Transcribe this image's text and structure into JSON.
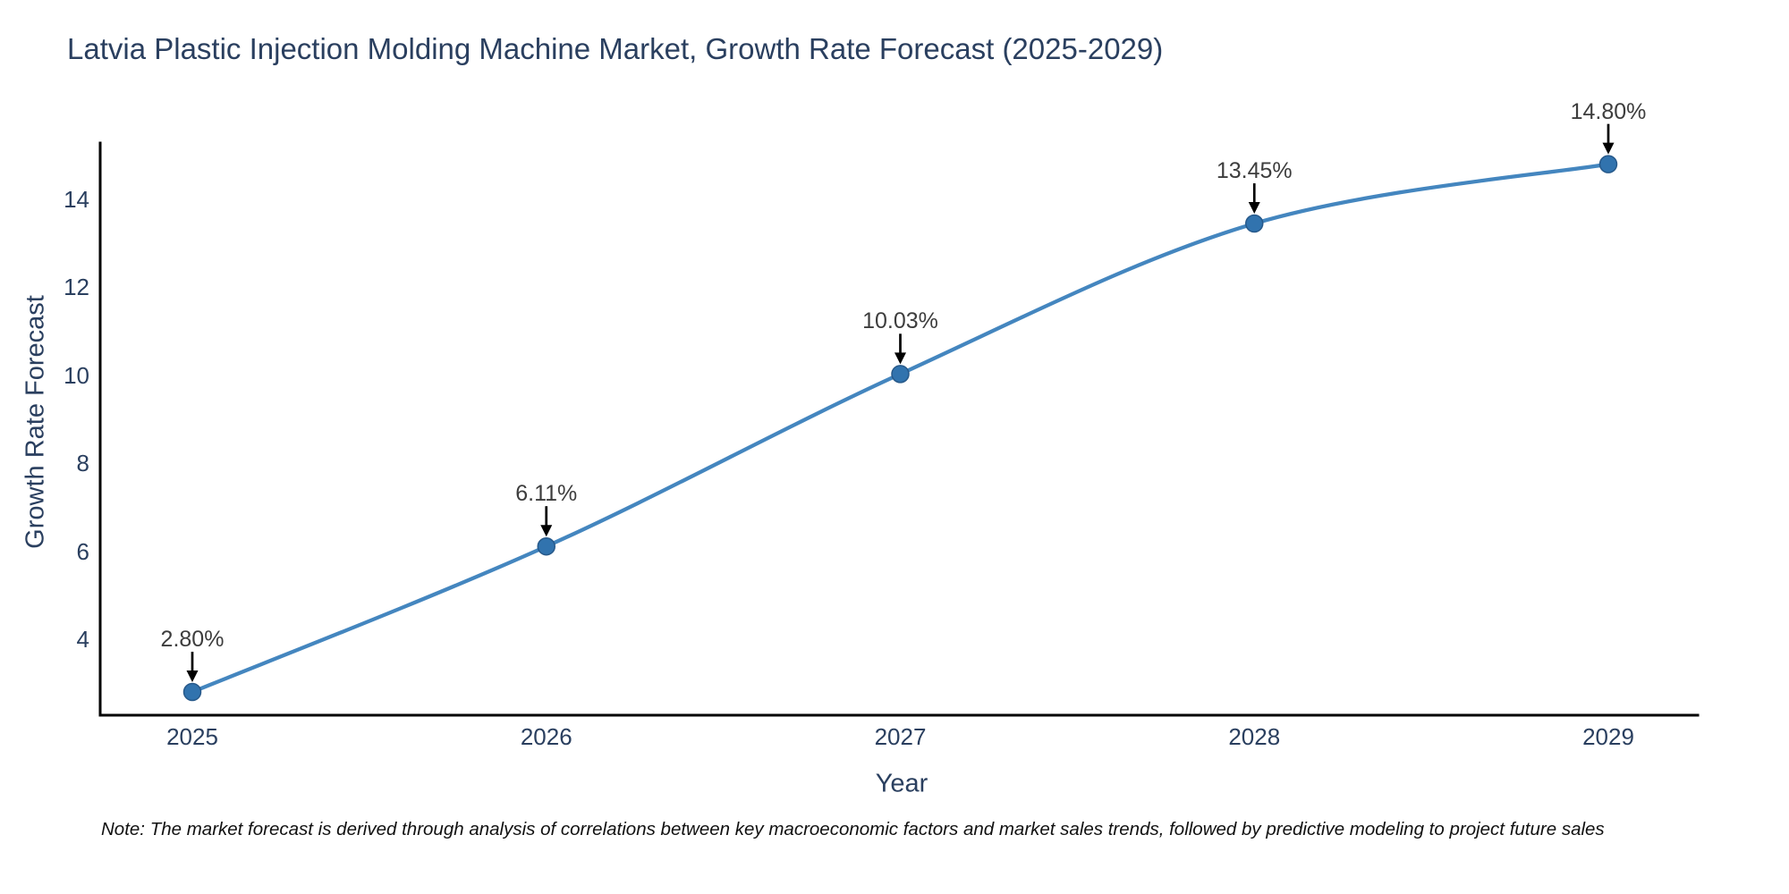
{
  "figure": {
    "note": "Note: The market forecast is derived through analysis of correlations between key macroeconomic factors and market sales trends, followed by predictive modeling to project future sales"
  },
  "chart_data": {
    "type": "line",
    "title": "Latvia Plastic Injection Molding Machine Market, Growth Rate Forecast (2025-2029)",
    "xlabel": "Year",
    "ylabel": "Growth Rate Forecast",
    "categories": [
      "2025",
      "2026",
      "2027",
      "2028",
      "2029"
    ],
    "values": [
      2.8,
      6.11,
      10.03,
      13.45,
      14.8
    ],
    "point_labels": [
      "2.80%",
      "6.11%",
      "10.03%",
      "13.45%",
      "14.80%"
    ],
    "yticks": [
      4,
      6,
      8,
      10,
      12,
      14
    ],
    "ylim": [
      2.3,
      15.3
    ],
    "grid": false,
    "legend": false,
    "line_shape": "spline",
    "colors": {
      "line": "#4486bf",
      "marker": "#3173ae",
      "marker_edge": "#27598a",
      "axis": "#000000",
      "arrow": "#000000",
      "tick_text": "#2a3f5f",
      "annotation_text": "#3d3d3d"
    }
  }
}
